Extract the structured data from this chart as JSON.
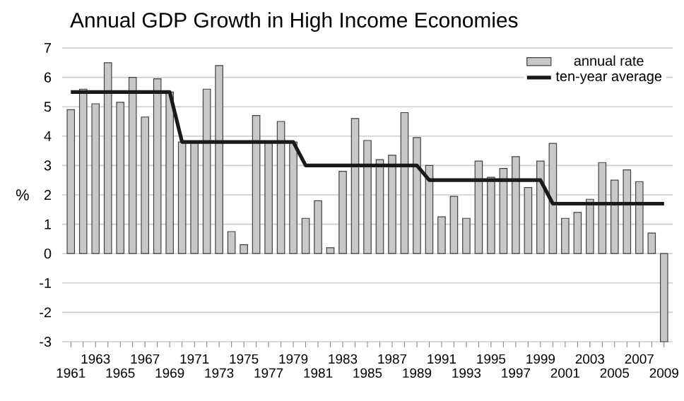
{
  "chart_data": {
    "type": "bar",
    "title": "Annual GDP Growth in High Income Economies",
    "ylabel": "%",
    "categories": [
      "1961",
      null,
      "1963",
      null,
      "1965",
      null,
      "1967",
      null,
      "1969",
      null,
      "1971",
      null,
      "1973",
      null,
      "1975",
      null,
      "1977",
      null,
      "1979",
      null,
      "1981",
      null,
      "1983",
      null,
      "1985",
      null,
      "1987",
      null,
      "1989",
      null,
      "1991",
      null,
      "1993",
      null,
      "1995",
      null,
      "1997",
      null,
      "1999",
      null,
      "2001",
      null,
      "2003",
      null,
      "2005",
      null,
      "2007",
      null,
      "2009"
    ],
    "series": [
      {
        "name": "annual rate",
        "color": "#c8c8c8",
        "values": [
          4.9,
          5.6,
          5.1,
          6.5,
          5.15,
          6.0,
          4.65,
          5.95,
          5.5,
          3.8,
          3.8,
          5.6,
          6.4,
          0.75,
          0.3,
          4.7,
          3.8,
          4.5,
          3.8,
          1.2,
          1.8,
          0.2,
          2.8,
          4.6,
          3.85,
          3.2,
          3.35,
          4.8,
          3.95,
          3.0,
          1.25,
          1.95,
          1.2,
          3.15,
          2.6,
          2.9,
          3.3,
          2.25,
          3.15,
          3.75,
          1.2,
          1.4,
          1.85,
          3.1,
          2.5,
          2.85,
          2.45,
          0.7,
          -3.0
        ]
      },
      {
        "name": "ten-year average",
        "type": "line",
        "color": "#1a1a1a",
        "values": [
          5.5,
          5.5,
          5.5,
          5.5,
          5.5,
          5.5,
          5.5,
          5.5,
          5.5,
          3.8,
          3.8,
          3.8,
          3.8,
          3.8,
          3.8,
          3.8,
          3.8,
          3.8,
          3.8,
          3.0,
          3.0,
          3.0,
          3.0,
          3.0,
          3.0,
          3.0,
          3.0,
          3.0,
          3.0,
          2.5,
          2.5,
          2.5,
          2.5,
          2.5,
          2.5,
          2.5,
          2.5,
          2.5,
          2.5,
          1.7,
          1.7,
          1.7,
          1.7,
          1.7,
          1.7,
          1.7,
          1.7,
          1.7,
          1.7
        ]
      }
    ],
    "ylim": [
      -3,
      7
    ],
    "yticks": [
      -3,
      -2,
      -1,
      0,
      1,
      2,
      3,
      4,
      5,
      6,
      7
    ],
    "grid": "y",
    "legend": "top right"
  }
}
